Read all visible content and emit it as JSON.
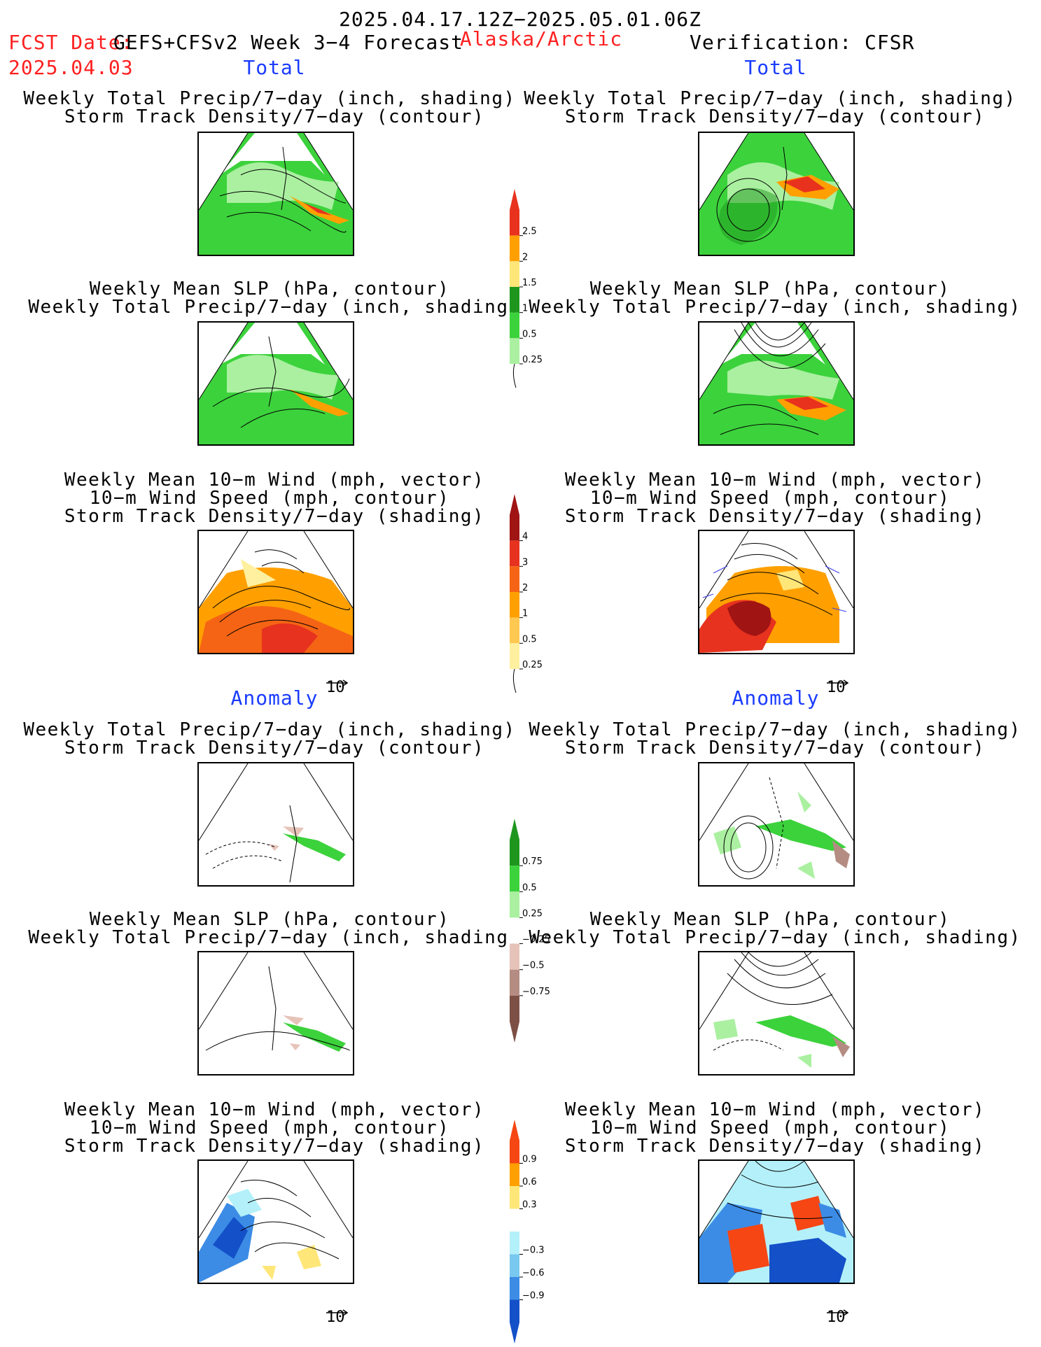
{
  "header": {
    "period": "2025.04.17.12Z−2025.05.01.06Z",
    "fcst_prefix": "FCST Date:",
    "model": "GEFS+CFSv2 Week 3−4 Forecast",
    "fcst_date": "2025.04.03",
    "region": "Alaska/Arctic",
    "verification": "Verification: CFSR"
  },
  "sections": {
    "total": "Total",
    "anomaly": "Anomaly"
  },
  "titles": {
    "precip_track_1": "Weekly Total Precip/7−day (inch, shading)",
    "precip_track_2": "Storm Track Density/7−day (contour)",
    "slp_precip_1": "Weekly Mean SLP (hPa, contour)",
    "slp_precip_2": "Weekly Total Precip/7−day (inch, shading)",
    "wind_1": "Weekly Mean 10−m Wind (mph, vector)",
    "wind_2": "10−m Wind Speed (mph, contour)",
    "wind_3": "Storm Track Density/7−day (shading)"
  },
  "vector_ref": "10",
  "colorbars": {
    "precip_total": {
      "labels": [
        "2.5",
        "2",
        "1.5",
        "1",
        "0.5",
        "0.25"
      ],
      "colors": [
        "#e8321e",
        "#ffa000",
        "#ffe678",
        "#1e961e",
        "#3cd23c",
        "#aaf0a0"
      ]
    },
    "track_total": {
      "labels": [
        "4",
        "3",
        "2",
        "1",
        "0.5",
        "0.25"
      ],
      "colors": [
        "#a01414",
        "#e6321e",
        "#f56414",
        "#ffa000",
        "#ffc850",
        "#fff0a0"
      ]
    },
    "precip_anom": {
      "labels": [
        "0.75",
        "0.5",
        "0.25",
        "−0.25",
        "−0.5",
        "−0.75"
      ],
      "colors": [
        "#1e961e",
        "#3cd23c",
        "#aaf0a0",
        "#ffffff",
        "#e6c3b9",
        "#b48c82",
        "#7d5046"
      ]
    },
    "track_anom": {
      "labels": [
        "0.9",
        "0.6",
        "0.3",
        "−0.3",
        "−0.6",
        "−0.9"
      ],
      "colors": [
        "#f54614",
        "#ffa000",
        "#ffe678",
        "#ffffff",
        "#b4f0fa",
        "#78c8f0",
        "#3c8ce6",
        "#1450c8"
      ]
    }
  }
}
